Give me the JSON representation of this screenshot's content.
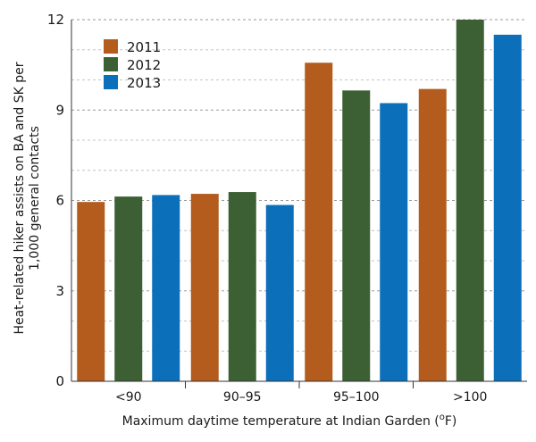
{
  "chart_data": {
    "type": "bar",
    "title": "",
    "xlabel": "Maximum daytime temperature at Indian Garden (",
    "xlabel_sup": "o",
    "xlabel_tail": "F)",
    "ylabel_line1": "Heat-related hiker assists on BA and SK per",
    "ylabel_line2": "1,000 general contacts",
    "categories": [
      "<90",
      "90–95",
      "95–100",
      ">100"
    ],
    "ylim": [
      0,
      12
    ],
    "yticks": [
      0,
      3,
      6,
      9,
      12
    ],
    "grid": true,
    "legend_position": "top-left",
    "series": [
      {
        "name": "2011",
        "color": "#b35c1e",
        "values": [
          5.95,
          6.22,
          10.57,
          9.7
        ]
      },
      {
        "name": "2012",
        "color": "#3c6034",
        "values": [
          6.13,
          6.28,
          9.65,
          12.0
        ]
      },
      {
        "name": "2013",
        "color": "#0b6fba",
        "values": [
          6.18,
          5.85,
          9.23,
          11.5
        ]
      }
    ]
  }
}
